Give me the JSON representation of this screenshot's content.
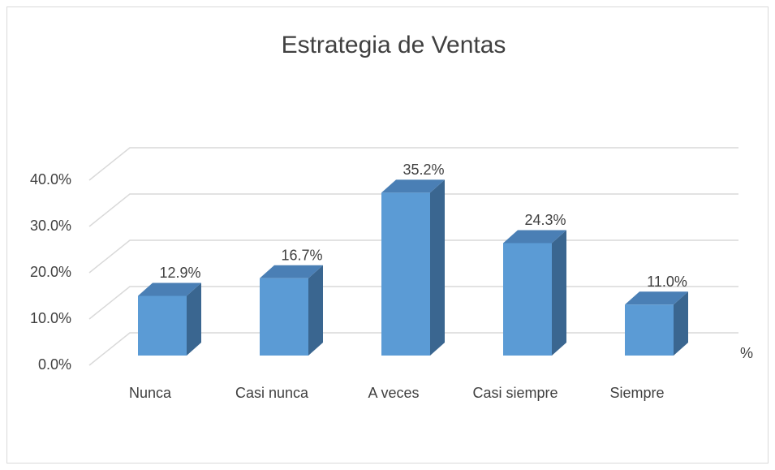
{
  "chart_data": {
    "type": "bar3d",
    "title": "Estrategia de Ventas",
    "categories": [
      "Nunca",
      "Casi nunca",
      "A veces",
      "Casi siempre",
      "Siempre"
    ],
    "values": [
      12.9,
      16.7,
      35.2,
      24.3,
      11.0
    ],
    "value_labels": [
      "12.9%",
      "16.7%",
      "35.2%",
      "24.3%",
      "11.0%"
    ],
    "color": "#5b9bd5",
    "x_label": "%",
    "ylim": [
      0,
      40
    ],
    "yticks": [
      {
        "value": 0,
        "label": "0.0%"
      },
      {
        "value": 10,
        "label": "10.0%"
      },
      {
        "value": 20,
        "label": "20.0%"
      },
      {
        "value": 30,
        "label": "30.0%"
      },
      {
        "value": 40,
        "label": "40.0%"
      }
    ],
    "grid": true
  }
}
